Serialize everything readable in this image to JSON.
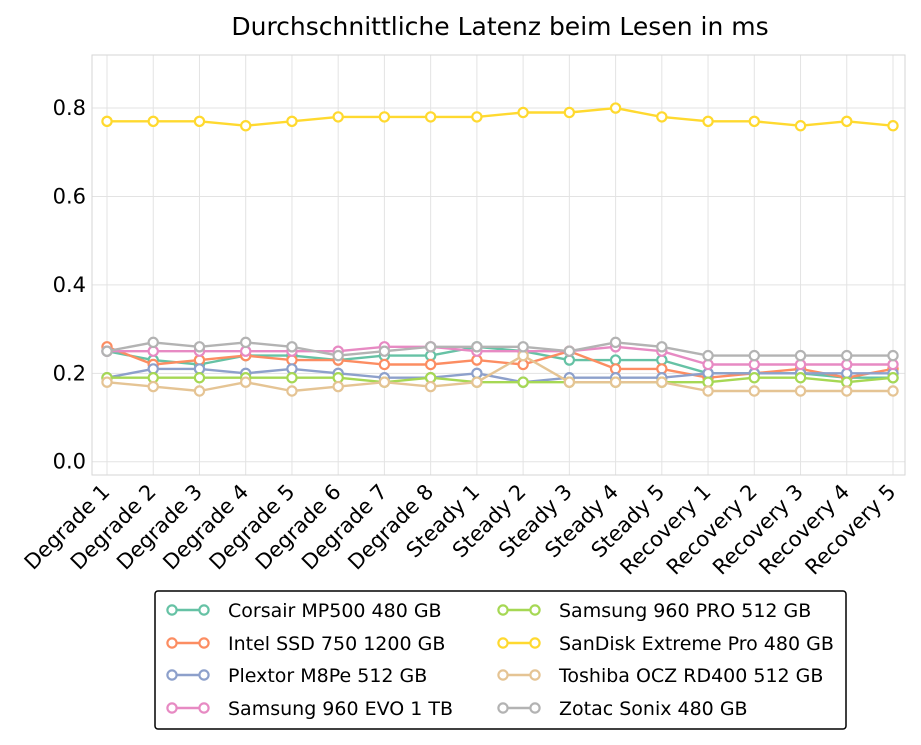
{
  "chart_data": {
    "type": "line",
    "title": "Durchschnittliche Latenz beim Lesen in ms",
    "xlabel": "",
    "ylabel": "",
    "ylim": [
      -0.03,
      0.92
    ],
    "yticks": [
      0.0,
      0.2,
      0.4,
      0.6,
      0.8
    ],
    "ytick_labels": [
      "0.0",
      "0.2",
      "0.4",
      "0.6",
      "0.8"
    ],
    "grid": true,
    "legend_position": "bottom",
    "categories": [
      "Degrade 1",
      "Degrade 2",
      "Degrade 3",
      "Degrade 4",
      "Degrade 5",
      "Degrade 6",
      "Degrade 7",
      "Degrade 8",
      "Steady 1",
      "Steady 2",
      "Steady 3",
      "Steady 4",
      "Steady 5",
      "Recovery 1",
      "Recovery 2",
      "Recovery 3",
      "Recovery 4",
      "Recovery 5"
    ],
    "series": [
      {
        "name": "Corsair MP500 480 GB",
        "color": "#66c2a5",
        "values": [
          0.25,
          0.23,
          0.22,
          0.24,
          0.24,
          0.23,
          0.24,
          0.24,
          0.26,
          0.25,
          0.23,
          0.23,
          0.23,
          0.2,
          0.2,
          0.2,
          0.19,
          0.19
        ]
      },
      {
        "name": "Intel SSD 750 1200 GB",
        "color": "#fc8d62",
        "values": [
          0.26,
          0.22,
          0.23,
          0.24,
          0.23,
          0.23,
          0.22,
          0.22,
          0.23,
          0.22,
          0.25,
          0.21,
          0.21,
          0.19,
          0.2,
          0.21,
          0.19,
          0.21
        ]
      },
      {
        "name": "Plextor M8Pe 512 GB",
        "color": "#8da0cb",
        "values": [
          0.19,
          0.21,
          0.21,
          0.2,
          0.21,
          0.2,
          0.19,
          0.19,
          0.2,
          0.18,
          0.19,
          0.19,
          0.19,
          0.2,
          0.2,
          0.2,
          0.2,
          0.2
        ]
      },
      {
        "name": "Samsung 960 EVO 1 TB",
        "color": "#e78ac3",
        "values": [
          0.25,
          0.25,
          0.25,
          0.25,
          0.25,
          0.25,
          0.26,
          0.26,
          0.25,
          0.25,
          0.25,
          0.26,
          0.25,
          0.22,
          0.22,
          0.22,
          0.22,
          0.22
        ]
      },
      {
        "name": "Samsung 960 PRO 512 GB",
        "color": "#a6d854",
        "values": [
          0.19,
          0.19,
          0.19,
          0.19,
          0.19,
          0.19,
          0.18,
          0.19,
          0.18,
          0.18,
          0.18,
          0.18,
          0.18,
          0.18,
          0.19,
          0.19,
          0.18,
          0.19
        ]
      },
      {
        "name": "SanDisk Extreme Pro 480 GB",
        "color": "#ffd92f",
        "values": [
          0.77,
          0.77,
          0.77,
          0.76,
          0.77,
          0.78,
          0.78,
          0.78,
          0.78,
          0.79,
          0.79,
          0.8,
          0.78,
          0.77,
          0.77,
          0.76,
          0.77,
          0.76
        ]
      },
      {
        "name": "Toshiba OCZ RD400 512 GB",
        "color": "#e5c494",
        "values": [
          0.18,
          0.17,
          0.16,
          0.18,
          0.16,
          0.17,
          0.18,
          0.17,
          0.18,
          0.24,
          0.18,
          0.18,
          0.18,
          0.16,
          0.16,
          0.16,
          0.16,
          0.16
        ]
      },
      {
        "name": "Zotac Sonix 480 GB",
        "color": "#b3b3b3",
        "values": [
          0.25,
          0.27,
          0.26,
          0.27,
          0.26,
          0.24,
          0.25,
          0.26,
          0.26,
          0.26,
          0.25,
          0.27,
          0.26,
          0.24,
          0.24,
          0.24,
          0.24,
          0.24
        ]
      }
    ]
  }
}
